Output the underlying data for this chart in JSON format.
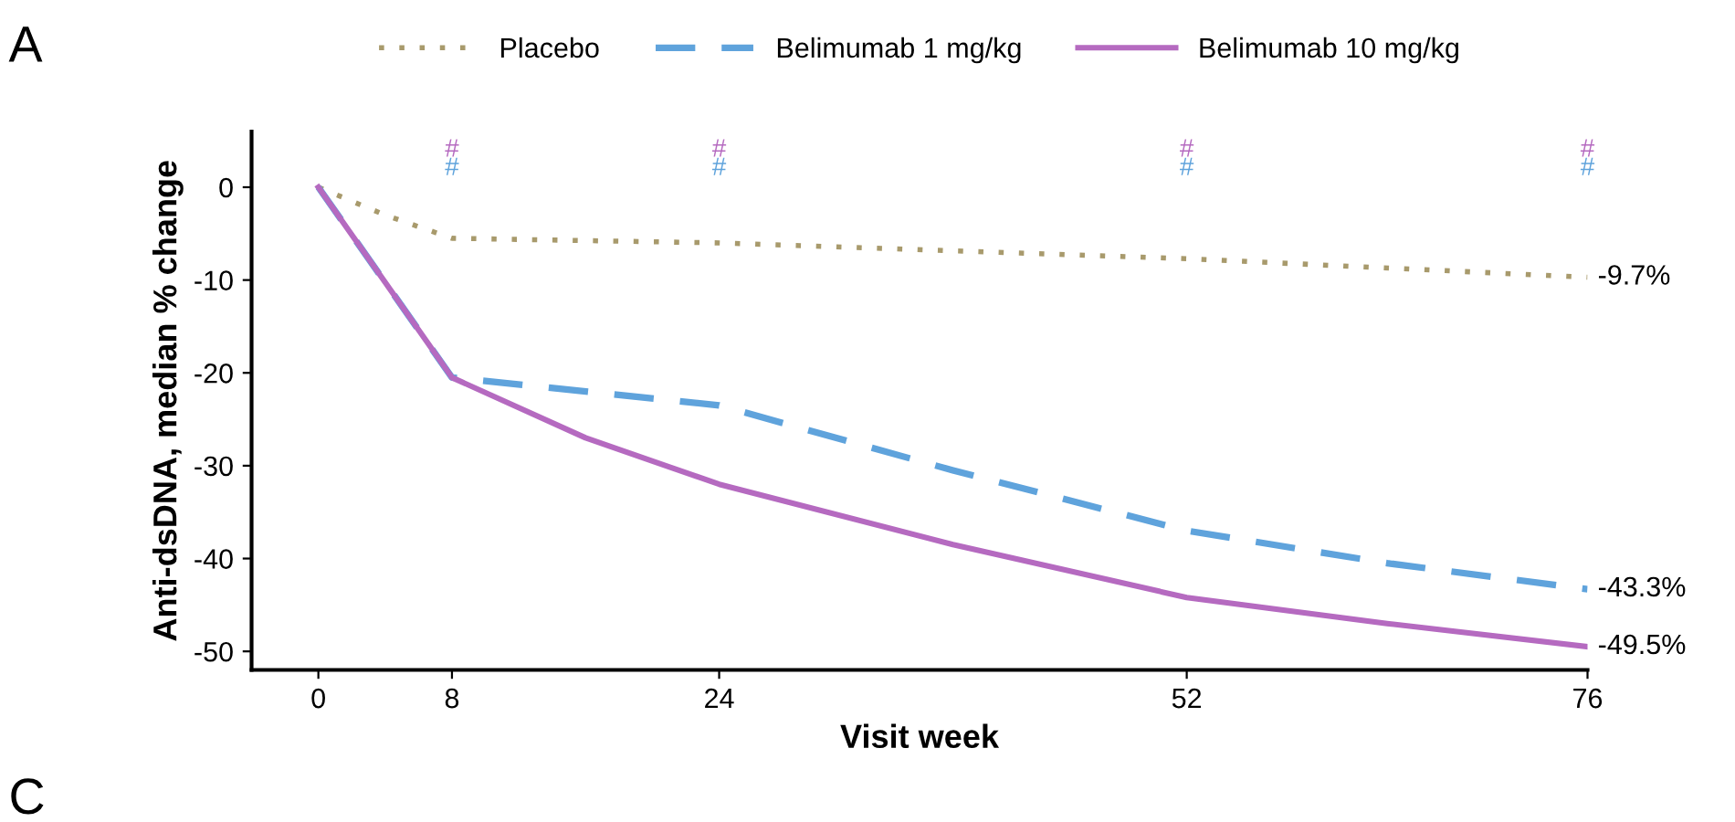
{
  "chart_data": {
    "type": "line",
    "xlabel": "Visit week",
    "ylabel": "Anti-dsDNA, median % change",
    "xlim": [
      -4,
      76
    ],
    "xticks": [
      0,
      8,
      24,
      52,
      76
    ],
    "ylim": [
      -52,
      6
    ],
    "yticks": [
      0,
      -10,
      -20,
      -30,
      -40,
      -50
    ],
    "legend": "top",
    "grid": false,
    "series": [
      {
        "name": "Placebo",
        "color": "#a89a6c",
        "line_style": "dotted",
        "x": [
          0,
          4,
          8,
          24,
          52,
          76
        ],
        "values": [
          0,
          -3,
          -5.5,
          -6,
          -7.7,
          -9.7
        ],
        "value_labels": [
          null,
          null,
          null,
          null,
          null,
          "-9.7%"
        ]
      },
      {
        "name": "Belimumab 1 mg/kg",
        "color": "#5fa3dc",
        "line_style": "dashed",
        "x": [
          0,
          8,
          24,
          38,
          52,
          64,
          76
        ],
        "values": [
          0,
          -20.5,
          -23.5,
          -30.5,
          -37,
          -40.5,
          -43.3
        ],
        "value_labels": [
          null,
          null,
          null,
          null,
          null,
          null,
          "-43.3%"
        ]
      },
      {
        "name": "Belimumab 10 mg/kg",
        "color": "#b56ac0",
        "line_style": "solid",
        "x": [
          0,
          8,
          16,
          24,
          38,
          52,
          64,
          76
        ],
        "values": [
          0,
          -20.5,
          -27,
          -32,
          -38.5,
          -44.2,
          -47,
          -49.5
        ],
        "value_labels": [
          null,
          null,
          null,
          null,
          null,
          null,
          null,
          "-49.5%"
        ]
      }
    ],
    "annotations": [
      "A",
      "C",
      "#",
      "#",
      "#",
      "#",
      "#",
      "#",
      "#",
      "#"
    ]
  }
}
